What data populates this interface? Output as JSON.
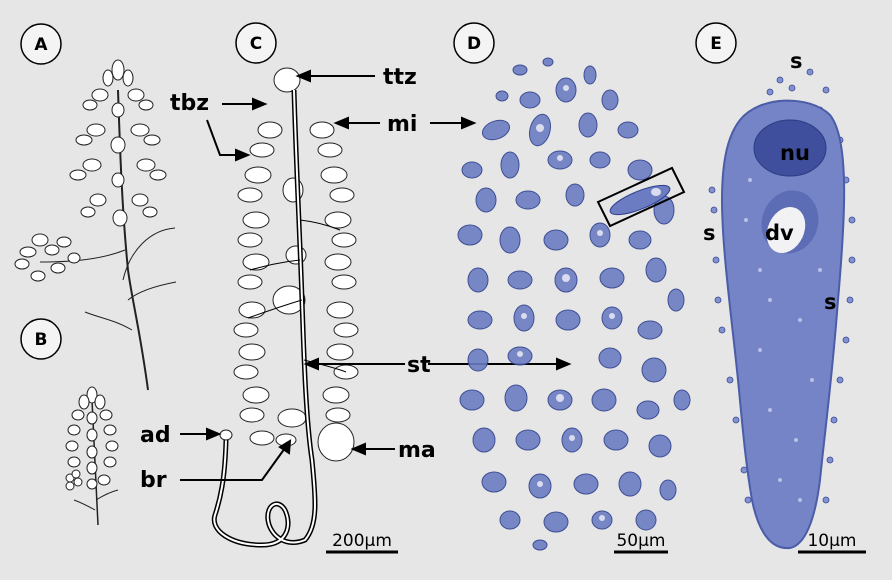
{
  "panels": {
    "A": "A",
    "B": "B",
    "C": "C",
    "D": "D",
    "E": "E"
  },
  "panel_c_labels": {
    "ttz": "ttz",
    "tbz": "tbz",
    "mi": "mi",
    "st": "st",
    "ad": "ad",
    "br": "br",
    "ma": "ma"
  },
  "panel_e_labels": {
    "s_top": "s",
    "s_left": "s",
    "s_right": "s",
    "nu": "nu",
    "dv": "dv"
  },
  "scale_bars": {
    "c": "200µm",
    "d": "50µm",
    "e": "10µm"
  },
  "colors": {
    "background": "#e6e6e6",
    "stain_blue": "#5c6fb8",
    "stain_light": "#c5cbe5",
    "line": "#000000"
  }
}
